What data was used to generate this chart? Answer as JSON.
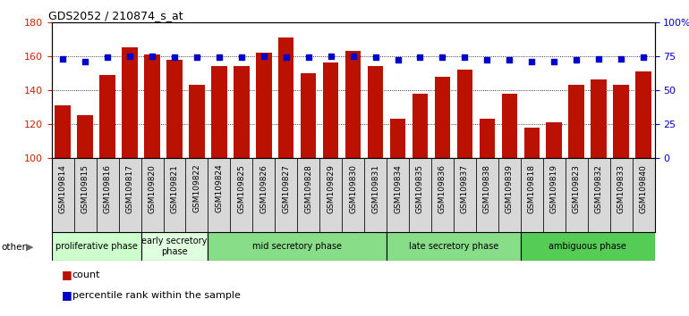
{
  "title": "GDS2052 / 210874_s_at",
  "samples": [
    "GSM109814",
    "GSM109815",
    "GSM109816",
    "GSM109817",
    "GSM109820",
    "GSM109821",
    "GSM109822",
    "GSM109824",
    "GSM109825",
    "GSM109826",
    "GSM109827",
    "GSM109828",
    "GSM109829",
    "GSM109830",
    "GSM109831",
    "GSM109834",
    "GSM109835",
    "GSM109836",
    "GSM109837",
    "GSM109838",
    "GSM109839",
    "GSM109818",
    "GSM109819",
    "GSM109823",
    "GSM109832",
    "GSM109833",
    "GSM109840"
  ],
  "counts": [
    131,
    125,
    149,
    165,
    161,
    158,
    143,
    154,
    154,
    162,
    171,
    150,
    156,
    163,
    154,
    123,
    138,
    148,
    152,
    123,
    138,
    118,
    121,
    143,
    146,
    143,
    151
  ],
  "percentiles": [
    73,
    71,
    74,
    75,
    75,
    74,
    74,
    74,
    74,
    75,
    74,
    74,
    75,
    75,
    74,
    72,
    74,
    74,
    74,
    72,
    72,
    71,
    71,
    72,
    73,
    73,
    74
  ],
  "phases": [
    {
      "name": "proliferative phase",
      "start": 0,
      "end": 4,
      "color": "#ccffcc"
    },
    {
      "name": "early secretory\nphase",
      "start": 4,
      "end": 7,
      "color": "#dfffdf"
    },
    {
      "name": "mid secretory phase",
      "start": 7,
      "end": 15,
      "color": "#88dd88"
    },
    {
      "name": "late secretory phase",
      "start": 15,
      "end": 21,
      "color": "#88dd88"
    },
    {
      "name": "ambiguous phase",
      "start": 21,
      "end": 27,
      "color": "#55cc55"
    }
  ],
  "ylim_left": [
    100,
    180
  ],
  "ylim_right": [
    0,
    100
  ],
  "bar_color": "#bb1100",
  "dot_color": "#0000cc",
  "plot_bg": "#ffffff",
  "left_yticks": [
    100,
    120,
    140,
    160,
    180
  ],
  "right_yticks": [
    0,
    25,
    50,
    75,
    100
  ],
  "right_yticklabels": [
    "0",
    "25",
    "50",
    "75",
    "100%"
  ]
}
